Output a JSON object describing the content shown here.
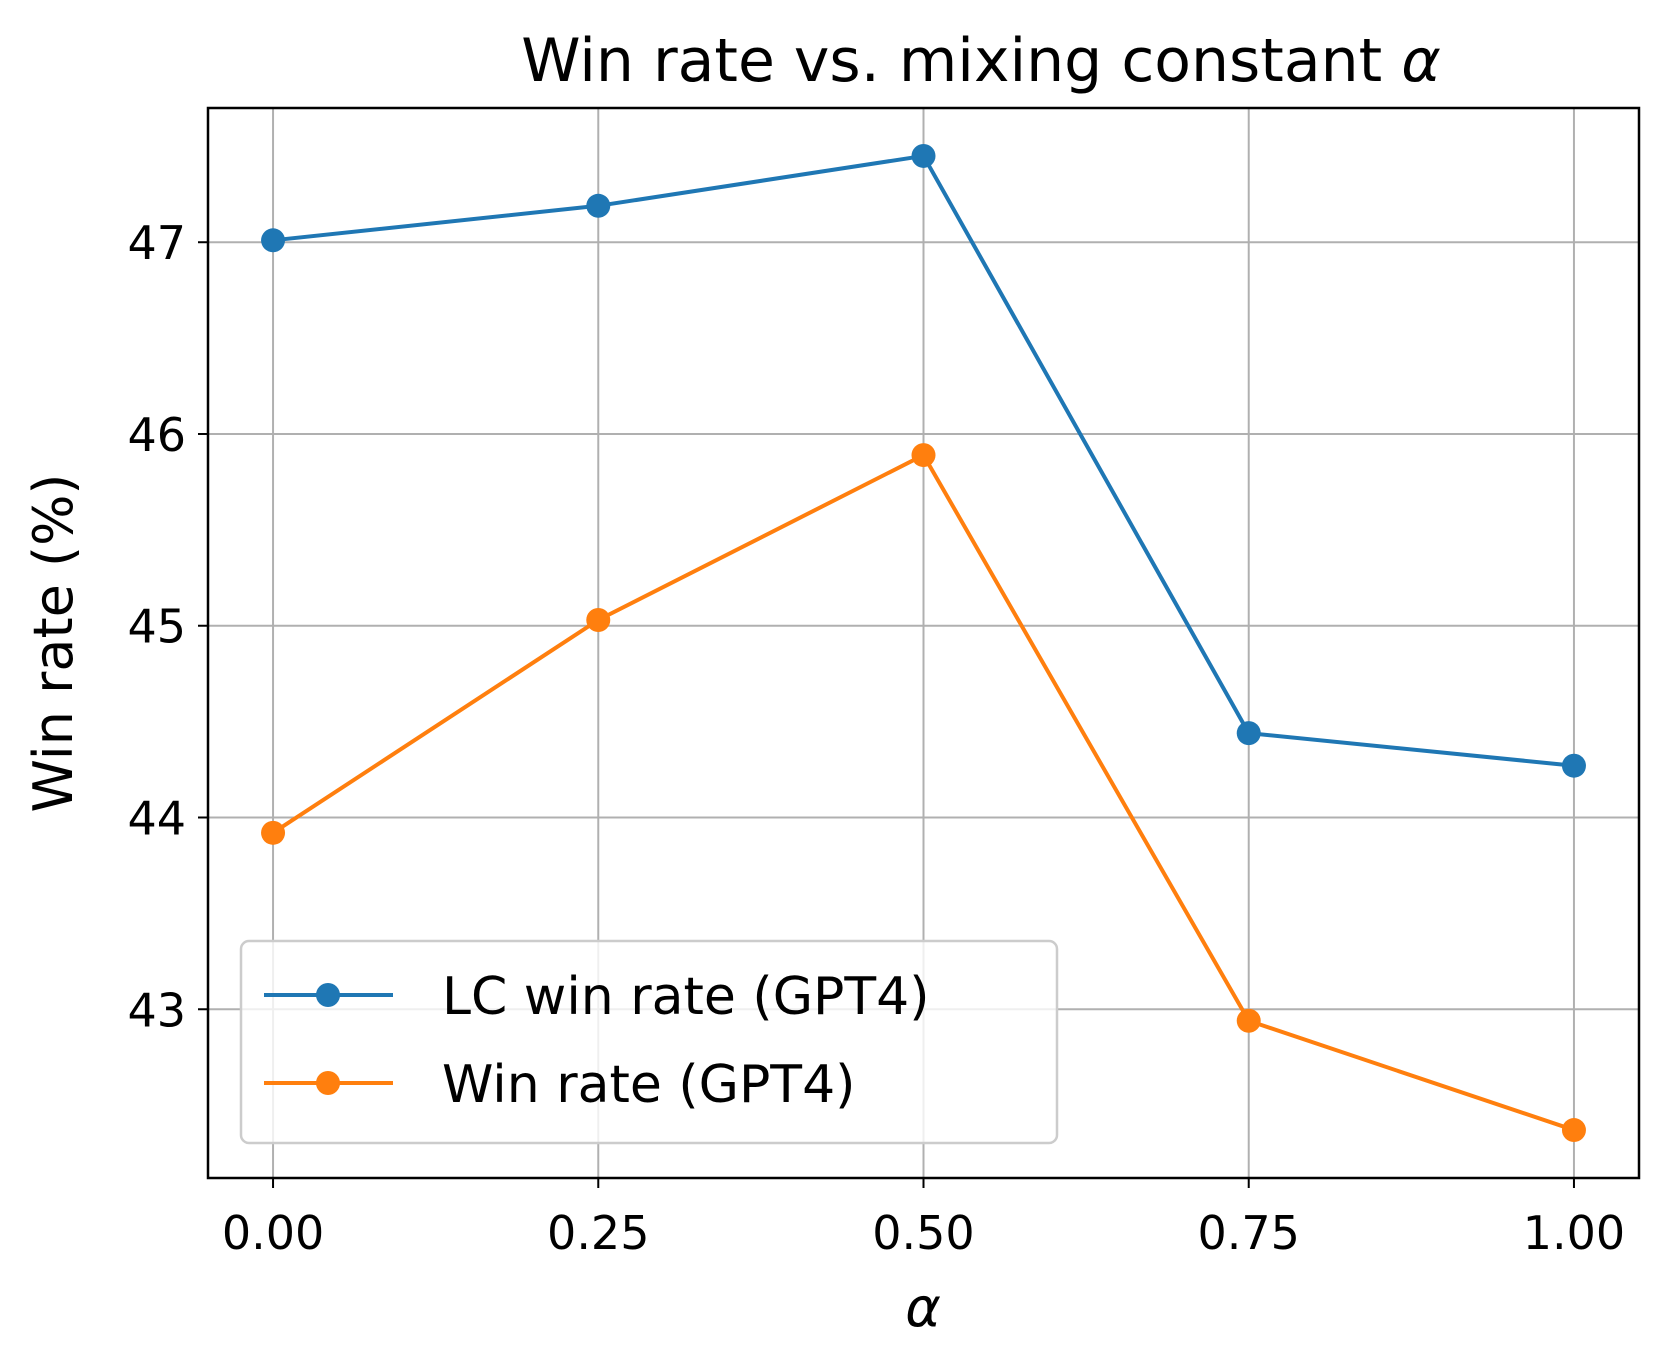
{
  "chart_data": {
    "type": "line",
    "title": "Win rate vs. mixing constant",
    "title_symbol": "α",
    "xlabel": "α",
    "ylabel": "Win rate (%)",
    "x": [
      0.0,
      0.25,
      0.5,
      0.75,
      1.0
    ],
    "x_tick_labels": [
      "0.00",
      "0.25",
      "0.50",
      "0.75",
      "1.00"
    ],
    "y_ticks": [
      43,
      44,
      45,
      46,
      47
    ],
    "y_tick_labels": [
      "43",
      "44",
      "45",
      "46",
      "47"
    ],
    "xlim": [
      -0.05,
      1.05
    ],
    "ylim": [
      42.12,
      47.7
    ],
    "grid": true,
    "legend_position": "lower-left",
    "series": [
      {
        "name": "LC win rate (GPT4)",
        "color": "#1f77b4",
        "marker": "circle",
        "values": [
          47.01,
          47.19,
          47.45,
          44.44,
          44.27
        ]
      },
      {
        "name": "Win rate (GPT4)",
        "color": "#ff7f0e",
        "marker": "circle",
        "values": [
          43.92,
          45.03,
          45.89,
          42.94,
          42.37
        ]
      }
    ]
  }
}
